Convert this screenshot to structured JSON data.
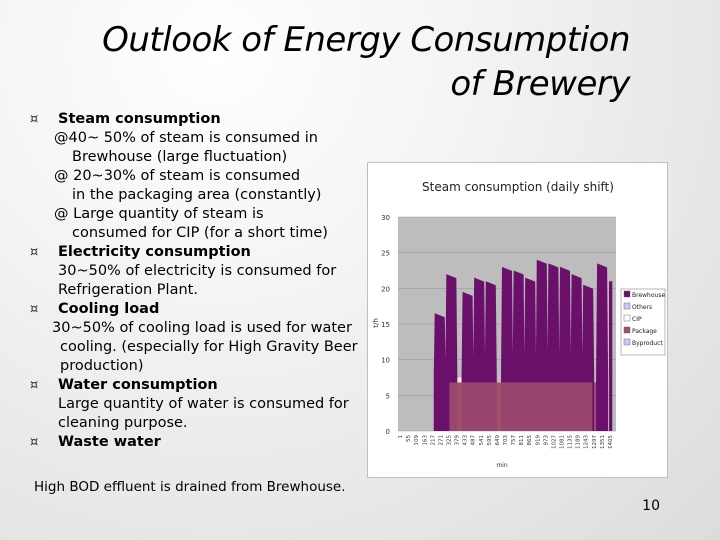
{
  "title": {
    "line1": "Outlook of Energy Consumption",
    "line2": "of Brewery"
  },
  "bullet_marker": "¤",
  "sections": {
    "steam": {
      "heading": "Steam consumption",
      "lines": [
        "@40~ 50% of steam is consumed in",
        "Brewhouse (large fluctuation)",
        "@ 20~30% of steam is consumed",
        "in the packaging area (constantly)",
        "@ Large quantity of steam is",
        "consumed for CIP (for a short time)"
      ]
    },
    "electricity": {
      "heading": "Electricity consumption",
      "lines": [
        "30~50% of electricity is consumed for",
        "Refrigeration Plant."
      ]
    },
    "cooling": {
      "heading": "Cooling load",
      "lines": [
        "30~50% of cooling load is used for water",
        "cooling. (especially for High Gravity Beer",
        "production)"
      ]
    },
    "water": {
      "heading": "Water consumption",
      "lines": [
        "Large quantity of water is consumed for",
        "cleaning purpose."
      ]
    },
    "waste": {
      "heading": "Waste water"
    }
  },
  "footer_text": "High BOD effluent is drained from Brewhouse.",
  "page_number": "10",
  "chart_data": {
    "type": "area",
    "title": "Steam consumption (daily shift)",
    "ylabel": "t/h",
    "xlabel": "min",
    "ylim": [
      0,
      30
    ],
    "yticks": [
      "0",
      "5",
      "10",
      "15",
      "20",
      "25",
      "30"
    ],
    "xticks": [
      "1",
      "55",
      "109",
      "163",
      "217",
      "271",
      "325",
      "379",
      "433",
      "487",
      "541",
      "595",
      "649",
      "703",
      "757",
      "811",
      "865",
      "919",
      "973",
      "1027",
      "1081",
      "1135",
      "1189",
      "1243",
      "1297",
      "1351",
      "1405"
    ],
    "legend_position": "right",
    "series": [
      {
        "name": "Brewhouse",
        "color": "#6a0f6a"
      },
      {
        "name": "Others",
        "color": "#c8c8ff"
      },
      {
        "name": "CIP",
        "color": "#ffffff"
      },
      {
        "name": "Package",
        "color": "#a0506e"
      },
      {
        "name": "Byproduct",
        "color": "#c8c8ff"
      }
    ],
    "package_base": 6.8,
    "cip_top": 7.5,
    "brewhouse_peaks": [
      {
        "x": 90,
        "y": 16.5
      },
      {
        "x": 115,
        "y": 22.0
      },
      {
        "x": 150,
        "y": 19.5
      },
      {
        "x": 175,
        "y": 21.5
      },
      {
        "x": 200,
        "y": 21.0
      },
      {
        "x": 235,
        "y": 23.0
      },
      {
        "x": 260,
        "y": 22.5
      },
      {
        "x": 285,
        "y": 21.5
      },
      {
        "x": 310,
        "y": 24.0
      },
      {
        "x": 335,
        "y": 23.5
      },
      {
        "x": 360,
        "y": 23.0
      },
      {
        "x": 385,
        "y": 22.0
      },
      {
        "x": 410,
        "y": 20.5
      },
      {
        "x": 440,
        "y": 23.5
      }
    ]
  }
}
